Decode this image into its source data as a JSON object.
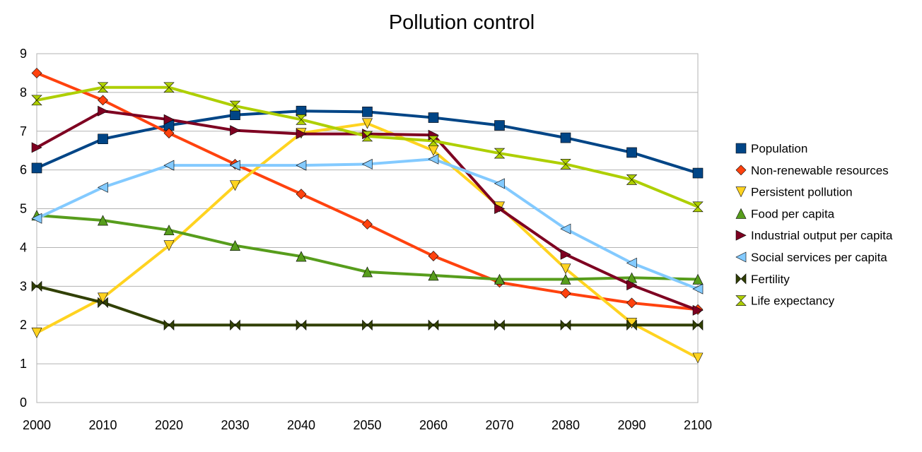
{
  "chart_data": {
    "type": "line",
    "title": "Pollution control",
    "xlabel": "",
    "ylabel": "",
    "x": [
      2000,
      2010,
      2020,
      2030,
      2040,
      2050,
      2060,
      2070,
      2080,
      2090,
      2100
    ],
    "xlim": [
      2000,
      2100
    ],
    "ylim": [
      0,
      9
    ],
    "yticks": [
      0,
      1,
      2,
      3,
      4,
      5,
      6,
      7,
      8,
      9
    ],
    "grid": "horizontal",
    "legend": "right",
    "series": [
      {
        "name": "Population",
        "color": "#004586",
        "marker": "square",
        "values": [
          6.05,
          6.8,
          7.15,
          7.42,
          7.52,
          7.5,
          7.35,
          7.15,
          6.83,
          6.45,
          5.92
        ]
      },
      {
        "name": "Non-renewable resources",
        "color": "#ff420e",
        "marker": "diamond",
        "values": [
          8.5,
          7.8,
          6.95,
          6.15,
          5.38,
          4.6,
          3.78,
          3.1,
          2.82,
          2.57,
          2.4
        ]
      },
      {
        "name": "Persistent pollution",
        "color": "#ffd320",
        "marker": "triangle-down",
        "values": [
          1.8,
          2.7,
          4.05,
          5.6,
          6.95,
          7.2,
          6.5,
          5.05,
          3.45,
          2.05,
          1.15
        ]
      },
      {
        "name": "Food per capita",
        "color": "#579d1c",
        "marker": "triangle-up",
        "values": [
          4.83,
          4.7,
          4.45,
          4.05,
          3.77,
          3.37,
          3.28,
          3.18,
          3.18,
          3.22,
          3.18
        ]
      },
      {
        "name": "Industrial output per capita",
        "color": "#7e0021",
        "marker": "triangle-right",
        "values": [
          6.58,
          7.52,
          7.3,
          7.02,
          6.93,
          6.93,
          6.9,
          5.0,
          3.82,
          3.03,
          2.38
        ]
      },
      {
        "name": "Social services per capita",
        "color": "#83caff",
        "marker": "triangle-left",
        "values": [
          4.75,
          5.55,
          6.12,
          6.12,
          6.12,
          6.15,
          6.28,
          5.65,
          4.48,
          3.6,
          2.93
        ]
      },
      {
        "name": "Fertility",
        "color": "#314004",
        "marker": "bowtie",
        "values": [
          3.0,
          2.58,
          2.0,
          2.0,
          2.0,
          2.0,
          2.0,
          2.0,
          2.0,
          2.0,
          2.0
        ]
      },
      {
        "name": "Life expectancy",
        "color": "#aecf00",
        "marker": "hourglass",
        "values": [
          7.8,
          8.13,
          8.13,
          7.65,
          7.3,
          6.87,
          6.75,
          6.43,
          6.15,
          5.75,
          5.05
        ]
      }
    ]
  }
}
